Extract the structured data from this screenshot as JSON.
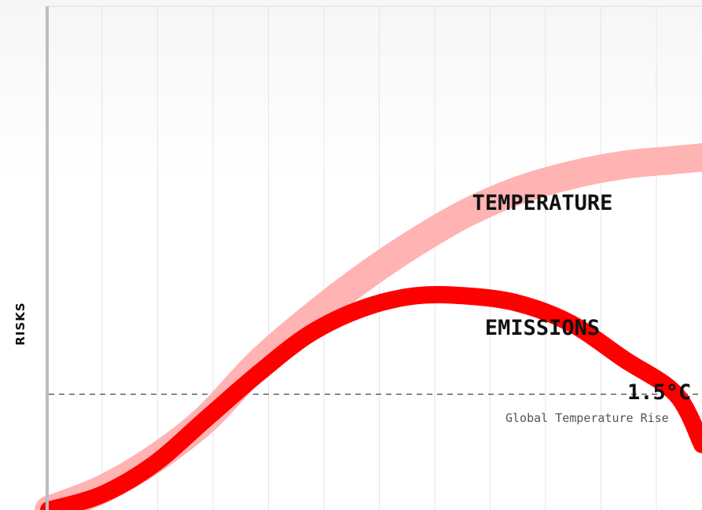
{
  "chart_data": {
    "type": "line",
    "ylabel": "RISKS",
    "grid": true,
    "x_domain": [
      0,
      100
    ],
    "y_domain": [
      0,
      100
    ],
    "threshold": {
      "value": 23,
      "label": "1.5°C",
      "sublabel": "Global Temperature Rise"
    },
    "series": [
      {
        "name": "TEMPERATURE",
        "color": "#ffb3b3",
        "x": [
          0,
          8,
          16,
          24,
          32,
          40,
          48,
          56,
          64,
          72,
          80,
          88,
          96,
          100
        ],
        "y": [
          0,
          4,
          10,
          18,
          29,
          38,
          46,
          53,
          59,
          63.5,
          66.5,
          68.5,
          69.5,
          70
        ]
      },
      {
        "name": "EMISSIONS",
        "color": "#ff0000",
        "x": [
          0,
          8,
          16,
          24,
          32,
          40,
          48,
          56,
          64,
          72,
          80,
          88,
          96,
          100
        ],
        "y": [
          0,
          3,
          9,
          18,
          27,
          35,
          40,
          42.5,
          42.5,
          41,
          37,
          30,
          23,
          13
        ]
      }
    ]
  }
}
